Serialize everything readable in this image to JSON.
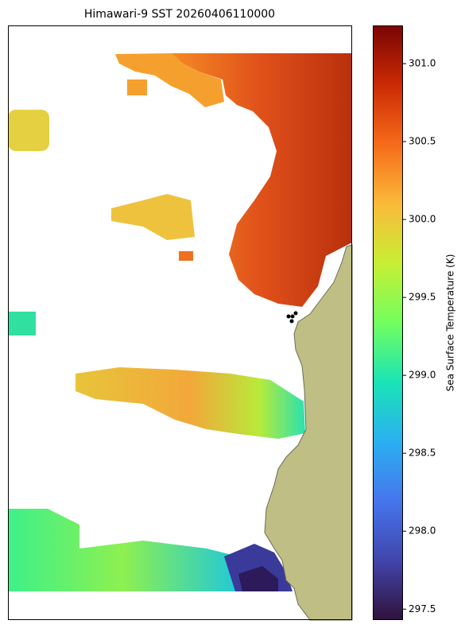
{
  "title": "Himawari-9 SST 20260406110000",
  "colorbar": {
    "label": "Sea Surface Temperature (K)",
    "lim": [
      297.43,
      301.245
    ],
    "ticks": [
      {
        "value": 297.5,
        "label": "297.5"
      },
      {
        "value": 298,
        "label": "298.0"
      },
      {
        "value": 298.5,
        "label": "298.5"
      },
      {
        "value": 299,
        "label": "299.0"
      },
      {
        "value": 299.5,
        "label": "299.5"
      },
      {
        "value": 300,
        "label": "300.0"
      },
      {
        "value": 300.5,
        "label": "300.5"
      },
      {
        "value": 301,
        "label": "301.0"
      }
    ]
  }
}
